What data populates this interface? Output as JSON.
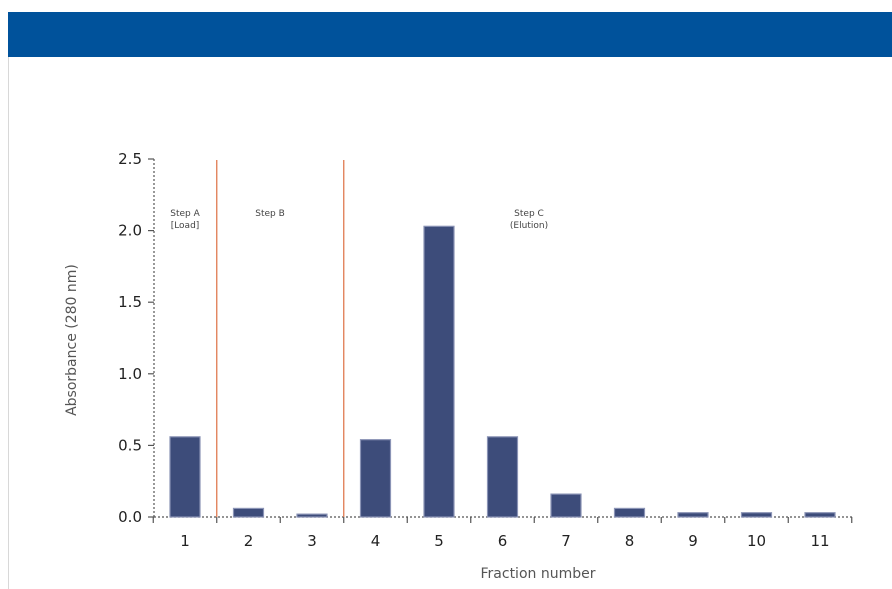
{
  "header": {
    "color": "#00529b"
  },
  "chart_data": {
    "type": "bar",
    "title": "",
    "xlabel": "Fraction number",
    "ylabel": "Absorbance (280 nm)",
    "categories": [
      "1",
      "2",
      "3",
      "4",
      "5",
      "6",
      "7",
      "8",
      "9",
      "10",
      "11"
    ],
    "values": [
      0.56,
      0.06,
      0.02,
      0.54,
      2.03,
      0.56,
      0.16,
      0.06,
      0.03,
      0.03,
      0.03
    ],
    "ylim": [
      0,
      2.5
    ],
    "yticks": [
      "0.0",
      "0.5",
      "1.0",
      "1.5",
      "2.0",
      "2.5"
    ],
    "grid": false,
    "bar_color": "#3d4c7a",
    "divider_color": "#e07a50",
    "dividers_after_category": [
      "1",
      "3"
    ],
    "annotations": [
      {
        "lines": [
          "Step A",
          "[Load]"
        ],
        "near_category": "1"
      },
      {
        "lines": [
          "Step B"
        ],
        "near_category": "2"
      },
      {
        "lines": [
          "Step C",
          "(Elution)"
        ],
        "near_category": "7"
      }
    ]
  }
}
